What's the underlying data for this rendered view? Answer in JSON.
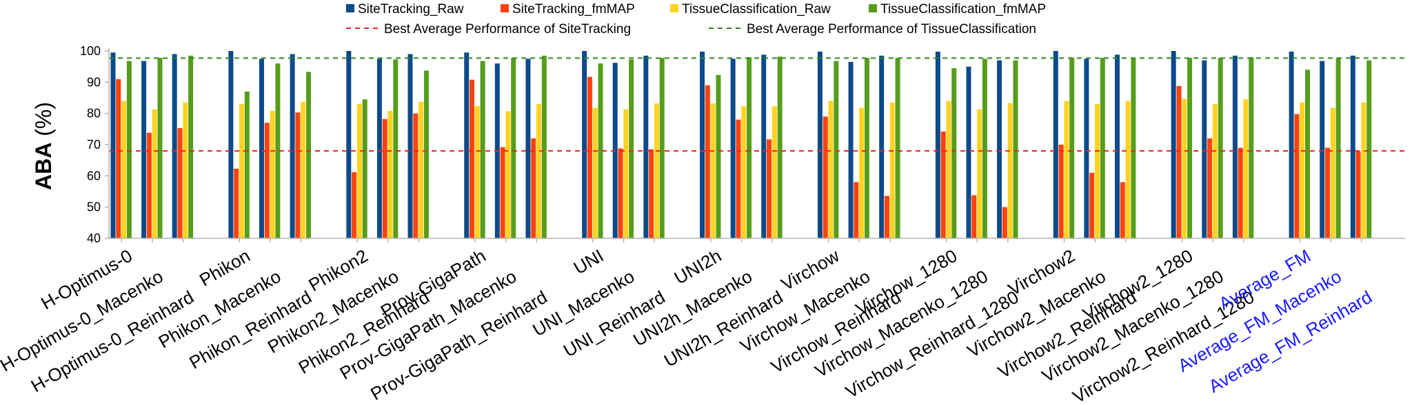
{
  "chart_data": {
    "type": "bar",
    "ylabel_bold": "ABA",
    "ylabel_unit": " (%)",
    "ylim": [
      40,
      100
    ],
    "yticks": [
      40,
      50,
      60,
      70,
      80,
      90,
      100
    ],
    "legend_position": "top",
    "colors": {
      "SiteTracking_Raw": "#0d4a8a",
      "SiteTracking_fmMAP": "#ff420e",
      "TissueClassification_Raw": "#ffd320",
      "TissueClassification_fmMAP": "#579d1c",
      "site_line": "#ee2222",
      "tissue_line": "#2a8a1a",
      "highlight_label": "#1a1aff",
      "label": "#000000"
    },
    "series": [
      {
        "name": "SiteTracking_Raw",
        "values": [
          99.5,
          96.8,
          99.0,
          100.0,
          97.5,
          99.0,
          100.0,
          97.5,
          99.0,
          99.5,
          96.0,
          97.5,
          100.0,
          96.2,
          98.5,
          99.8,
          97.5,
          98.8,
          99.8,
          96.5,
          98.5,
          99.8,
          95.0,
          97.0,
          100.0,
          97.5,
          98.8,
          100.0,
          97.0,
          98.5,
          99.8,
          96.8,
          98.5
        ]
      },
      {
        "name": "SiteTracking_fmMAP",
        "values": [
          91.0,
          73.8,
          75.3,
          62.3,
          77.0,
          80.3,
          61.2,
          78.2,
          80.0,
          90.8,
          69.2,
          72.0,
          91.7,
          68.8,
          68.5,
          89.0,
          78.0,
          71.7,
          79.0,
          58.0,
          53.6,
          74.2,
          53.8,
          50.0,
          70.0,
          61.0,
          58.0,
          88.8,
          72.0,
          69.0,
          79.8,
          69.0,
          67.8
        ]
      },
      {
        "name": "TissueClassification_Raw",
        "values": [
          84.0,
          81.3,
          83.5,
          83.0,
          80.8,
          83.7,
          83.0,
          80.8,
          83.7,
          82.3,
          80.7,
          83.0,
          81.8,
          81.3,
          83.2,
          83.2,
          82.3,
          82.3,
          84.0,
          81.8,
          83.5,
          84.0,
          81.3,
          83.3,
          84.0,
          83.0,
          84.0,
          84.7,
          83.0,
          84.5,
          83.5,
          81.8,
          83.5
        ]
      },
      {
        "name": "TissueClassification_fmMAP",
        "values": [
          96.8,
          97.8,
          98.5,
          87.0,
          96.0,
          93.3,
          84.5,
          97.3,
          93.7,
          96.8,
          97.8,
          98.5,
          96.0,
          97.3,
          97.8,
          92.3,
          98.0,
          98.2,
          96.8,
          97.8,
          97.8,
          94.5,
          97.5,
          97.0,
          97.8,
          97.8,
          97.8,
          97.8,
          97.8,
          98.0,
          94.0,
          97.8,
          97.0
        ]
      }
    ],
    "groups": [
      [
        "H-Optimus-0",
        "H-Optimus-0_Macenko",
        "H-Optimus-0_Reinhard"
      ],
      [
        "Phikon",
        "Phikon_Macenko",
        "Phikon_Reinhard"
      ],
      [
        "Phikon2",
        "Phikon2_Macenko",
        "Phikon2_Reinhard"
      ],
      [
        "Prov-GigaPath",
        "Prov-GigaPath_Macenko",
        "Prov-GigaPath_Reinhard"
      ],
      [
        "UNI",
        "UNI_Macenko",
        "UNI_Reinhard"
      ],
      [
        "UNI2h",
        "UNI2h_Macenko",
        "UNI2h_Reinhard"
      ],
      [
        "Virchow",
        "Virchow_Macenko",
        "Virchow_Reinhard"
      ],
      [
        "Virchow_1280",
        "Virchow_Macenko_1280",
        "Virchow_Reinhard_1280"
      ],
      [
        "Virchow2",
        "Virchow2_Macenko",
        "Virchow2_Reinhard"
      ],
      [
        "Virchow2_1280",
        "Virchow2_Macenko_1280",
        "Virchow2_Reinhard_1280"
      ],
      [
        "Average_FM",
        "Average_FM_Macenko",
        "Average_FM_Reinhard"
      ]
    ],
    "highlight_group": 10,
    "reference_lines": [
      {
        "name": "Best Average Performance of SiteTracking",
        "value": 68.0,
        "color_key": "site_line"
      },
      {
        "name": "Best Average Performance of TissueClassification",
        "value": 97.7,
        "color_key": "tissue_line"
      }
    ]
  }
}
